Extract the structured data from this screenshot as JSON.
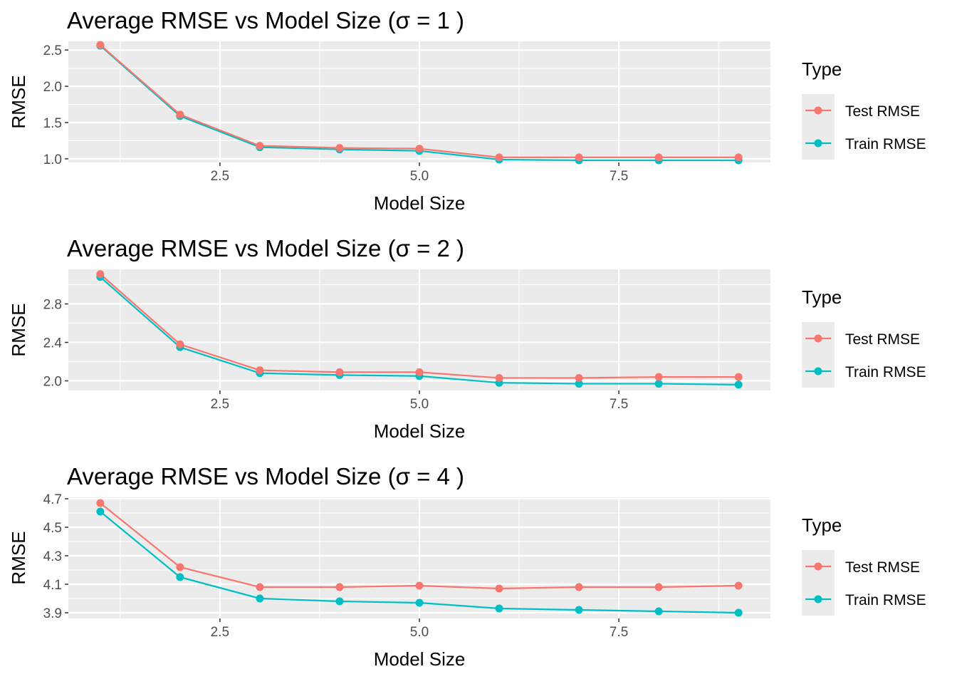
{
  "colors": {
    "panel_bg": "#EBEBEB",
    "grid": "#FFFFFF",
    "tick": "#333333",
    "test": "#F8766D",
    "train": "#00BFC4"
  },
  "chart_data": [
    {
      "type": "line",
      "title": "Average RMSE vs Model Size (σ = 1 )",
      "xlabel": "Model Size",
      "ylabel": "RMSE",
      "xlim": [
        0.6,
        9.4
      ],
      "ylim": [
        0.95,
        2.62
      ],
      "x_ticks": [
        2.5,
        5.0,
        7.5
      ],
      "x_tick_labels": [
        "2.5",
        "5.0",
        "7.5"
      ],
      "y_ticks": [
        1.0,
        1.5,
        2.0,
        2.5
      ],
      "y_tick_labels": [
        "1.0",
        "1.5",
        "2.0",
        "2.5"
      ],
      "grid": true,
      "legend": {
        "title": "Type",
        "position": "right",
        "entries": [
          "Test RMSE",
          "Train RMSE"
        ]
      },
      "x": [
        1,
        2,
        3,
        4,
        5,
        6,
        7,
        8,
        9
      ],
      "series": [
        {
          "name": "Test RMSE",
          "color": "#F8766D",
          "values": [
            2.57,
            1.61,
            1.18,
            1.15,
            1.14,
            1.02,
            1.02,
            1.02,
            1.02
          ]
        },
        {
          "name": "Train RMSE",
          "color": "#00BFC4",
          "values": [
            2.56,
            1.59,
            1.16,
            1.13,
            1.11,
            0.99,
            0.98,
            0.98,
            0.98
          ]
        }
      ]
    },
    {
      "type": "line",
      "title": "Average RMSE vs Model Size (σ = 2 )",
      "xlabel": "Model Size",
      "ylabel": "RMSE",
      "xlim": [
        0.6,
        9.4
      ],
      "ylim": [
        1.9,
        3.16
      ],
      "x_ticks": [
        2.5,
        5.0,
        7.5
      ],
      "x_tick_labels": [
        "2.5",
        "5.0",
        "7.5"
      ],
      "y_ticks": [
        2.0,
        2.4,
        2.8
      ],
      "y_tick_labels": [
        "2.0",
        "2.4",
        "2.8"
      ],
      "grid": true,
      "legend": {
        "title": "Type",
        "position": "right",
        "entries": [
          "Test RMSE",
          "Train RMSE"
        ]
      },
      "x": [
        1,
        2,
        3,
        4,
        5,
        6,
        7,
        8,
        9
      ],
      "series": [
        {
          "name": "Test RMSE",
          "color": "#F8766D",
          "values": [
            3.11,
            2.38,
            2.11,
            2.09,
            2.09,
            2.03,
            2.03,
            2.04,
            2.04
          ]
        },
        {
          "name": "Train RMSE",
          "color": "#00BFC4",
          "values": [
            3.08,
            2.35,
            2.08,
            2.06,
            2.05,
            1.98,
            1.97,
            1.97,
            1.96
          ]
        }
      ]
    },
    {
      "type": "line",
      "title": "Average RMSE vs Model Size (σ = 4 )",
      "xlabel": "Model Size",
      "ylabel": "RMSE",
      "xlim": [
        0.6,
        9.4
      ],
      "ylim": [
        3.86,
        4.71
      ],
      "x_ticks": [
        2.5,
        5.0,
        7.5
      ],
      "x_tick_labels": [
        "2.5",
        "5.0",
        "7.5"
      ],
      "y_ticks": [
        3.9,
        4.1,
        4.3,
        4.5,
        4.7
      ],
      "y_tick_labels": [
        "3.9",
        "4.1",
        "4.3",
        "4.5",
        "4.7"
      ],
      "grid": true,
      "legend": {
        "title": "Type",
        "position": "right",
        "entries": [
          "Test RMSE",
          "Train RMSE"
        ]
      },
      "x": [
        1,
        2,
        3,
        4,
        5,
        6,
        7,
        8,
        9
      ],
      "series": [
        {
          "name": "Test RMSE",
          "color": "#F8766D",
          "values": [
            4.67,
            4.22,
            4.08,
            4.08,
            4.09,
            4.07,
            4.08,
            4.08,
            4.09
          ]
        },
        {
          "name": "Train RMSE",
          "color": "#00BFC4",
          "values": [
            4.61,
            4.15,
            4.0,
            3.98,
            3.97,
            3.93,
            3.92,
            3.91,
            3.9
          ]
        }
      ]
    }
  ]
}
